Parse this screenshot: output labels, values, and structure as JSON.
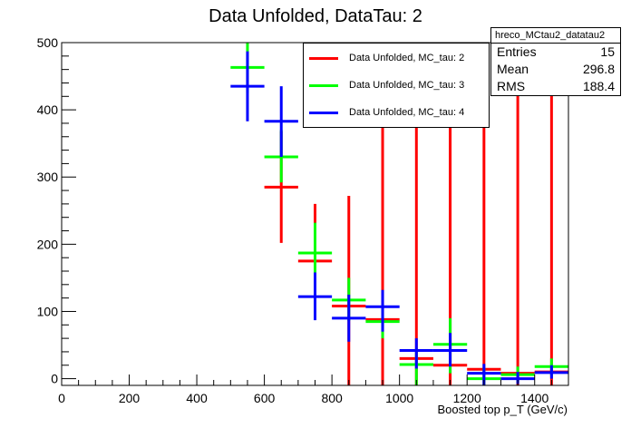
{
  "chart_data": {
    "type": "scatter",
    "title": "Data Unfolded, DataTau: 2",
    "xlabel": "Boosted top p_T (GeV/c)",
    "ylabel": "",
    "xlim": [
      0,
      1500
    ],
    "ylim": [
      -10,
      500
    ],
    "x_ticks": [
      0,
      200,
      400,
      600,
      800,
      1000,
      1200,
      1400
    ],
    "y_ticks": [
      0,
      100,
      200,
      300,
      400,
      500
    ],
    "grid": false,
    "legend_position": "top-right",
    "series": [
      {
        "name": "Data Unfolded, MC_tau: 2",
        "color": "#ff0000",
        "points": [
          {
            "x": 650,
            "y": 285,
            "xerr": 50,
            "lo": 202,
            "hi": 368
          },
          {
            "x": 750,
            "y": 175,
            "xerr": 50,
            "lo": 90,
            "hi": 260
          },
          {
            "x": 850,
            "y": 108,
            "xerr": 50,
            "lo": -10,
            "hi": 272
          },
          {
            "x": 950,
            "y": 88,
            "xerr": 50,
            "lo": -10,
            "hi": 500
          },
          {
            "x": 1050,
            "y": 30,
            "xerr": 50,
            "lo": -10,
            "hi": 500
          },
          {
            "x": 1150,
            "y": 20,
            "xerr": 50,
            "lo": -10,
            "hi": 500
          },
          {
            "x": 1250,
            "y": 14,
            "xerr": 50,
            "lo": -10,
            "hi": 500
          },
          {
            "x": 1350,
            "y": 8,
            "xerr": 50,
            "lo": -10,
            "hi": 500
          },
          {
            "x": 1450,
            "y": 10,
            "xerr": 50,
            "lo": -10,
            "hi": 500
          }
        ]
      },
      {
        "name": "Data Unfolded, MC_tau: 3",
        "color": "#00ff00",
        "points": [
          {
            "x": 550,
            "y": 463,
            "xerr": 50,
            "lo": 425,
            "hi": 500
          },
          {
            "x": 650,
            "y": 330,
            "xerr": 50,
            "lo": 292,
            "hi": 370
          },
          {
            "x": 750,
            "y": 187,
            "xerr": 50,
            "lo": 158,
            "hi": 232
          },
          {
            "x": 850,
            "y": 117,
            "xerr": 50,
            "lo": 86,
            "hi": 150
          },
          {
            "x": 950,
            "y": 85,
            "xerr": 50,
            "lo": 60,
            "hi": 110
          },
          {
            "x": 1050,
            "y": 21,
            "xerr": 50,
            "lo": -10,
            "hi": 45
          },
          {
            "x": 1150,
            "y": 51,
            "xerr": 50,
            "lo": 8,
            "hi": 90
          },
          {
            "x": 1250,
            "y": 0,
            "xerr": 50,
            "lo": -10,
            "hi": 16
          },
          {
            "x": 1350,
            "y": 6,
            "xerr": 50,
            "lo": -5,
            "hi": 18
          },
          {
            "x": 1450,
            "y": 18,
            "xerr": 50,
            "lo": 4,
            "hi": 30
          }
        ]
      },
      {
        "name": "Data Unfolded, MC_tau: 4",
        "color": "#0000ff",
        "points": [
          {
            "x": 550,
            "y": 435,
            "xerr": 50,
            "lo": 383,
            "hi": 487
          },
          {
            "x": 650,
            "y": 383,
            "xerr": 50,
            "lo": 330,
            "hi": 435
          },
          {
            "x": 750,
            "y": 122,
            "xerr": 50,
            "lo": 87,
            "hi": 158
          },
          {
            "x": 850,
            "y": 90,
            "xerr": 50,
            "lo": 55,
            "hi": 125
          },
          {
            "x": 950,
            "y": 107,
            "xerr": 50,
            "lo": 70,
            "hi": 132
          },
          {
            "x": 1050,
            "y": 42,
            "xerr": 50,
            "lo": 15,
            "hi": 60
          },
          {
            "x": 1150,
            "y": 42,
            "xerr": 50,
            "lo": 18,
            "hi": 68
          },
          {
            "x": 1250,
            "y": 8,
            "xerr": 50,
            "lo": -10,
            "hi": 22
          },
          {
            "x": 1350,
            "y": 0,
            "xerr": 50,
            "lo": -8,
            "hi": 10
          },
          {
            "x": 1450,
            "y": 9,
            "xerr": 50,
            "lo": 0,
            "hi": 20
          }
        ]
      }
    ]
  },
  "stats": {
    "title": "hreco_MCtau2_datatau2",
    "rows": [
      {
        "label": "Entries",
        "value": "15"
      },
      {
        "label": "Mean",
        "value": "296.8"
      },
      {
        "label": "RMS",
        "value": "188.4"
      }
    ]
  },
  "legend_labels": {
    "s0": "Data Unfolded, MC_tau: 2",
    "s1": "Data Unfolded, MC_tau: 3",
    "s2": "Data Unfolded, MC_tau: 4"
  }
}
